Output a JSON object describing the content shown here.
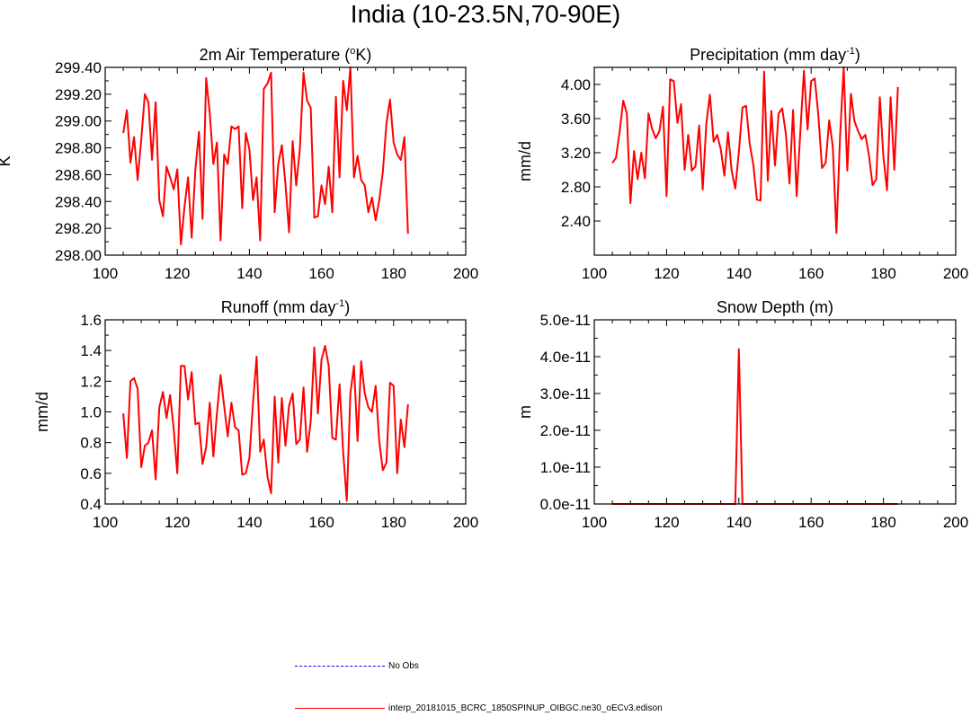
{
  "figure_title": "India (10-23.5N,70-90E)",
  "legend": [
    {
      "label": "No Obs",
      "color": "#0000ff",
      "style": "dashed"
    },
    {
      "label": "interp_20181015_BCRC_1850SPINUP_OIBGC.ne30_oECv3.edison",
      "color": "#ff0000",
      "style": "solid"
    }
  ],
  "chart_data": [
    {
      "type": "line",
      "title": "2m Air Temperature (°K)",
      "ylabel": "K",
      "xlabel": "",
      "xlim": [
        100,
        200
      ],
      "xticks": [
        "100",
        "120",
        "140",
        "160",
        "180",
        "200"
      ],
      "ylim": [
        298.0,
        299.4
      ],
      "yticks": [
        "298.00",
        "298.20",
        "298.40",
        "298.60",
        "298.80",
        "299.00",
        "299.20",
        "299.40"
      ],
      "series": [
        {
          "color": "#ff0000",
          "x": [
            105,
            106,
            107,
            108,
            109,
            110,
            111,
            112,
            113,
            114,
            115,
            116,
            117,
            118,
            119,
            120,
            121,
            122,
            123,
            124,
            125,
            126,
            127,
            128,
            129,
            130,
            131,
            132,
            133,
            134,
            135,
            136,
            137,
            138,
            139,
            140,
            141,
            142,
            143,
            144,
            145,
            146,
            147,
            148,
            149,
            150,
            151,
            152,
            153,
            154,
            155,
            156,
            157,
            158,
            159,
            160,
            161,
            162,
            163,
            164,
            165,
            166,
            167,
            168,
            169,
            170,
            171,
            172,
            173,
            174,
            175,
            176,
            177,
            178,
            179,
            180,
            181,
            182,
            183,
            184
          ],
          "values": [
            298.91,
            299.08,
            298.69,
            298.88,
            298.56,
            298.86,
            299.2,
            299.14,
            298.71,
            299.14,
            298.41,
            298.29,
            298.66,
            298.58,
            298.49,
            298.64,
            298.08,
            298.36,
            298.58,
            298.13,
            298.64,
            298.92,
            298.27,
            299.32,
            299.06,
            298.68,
            298.84,
            298.11,
            298.75,
            298.68,
            298.96,
            298.94,
            298.96,
            298.35,
            298.91,
            298.79,
            298.41,
            298.58,
            298.11,
            299.24,
            299.28,
            299.36,
            298.32,
            298.68,
            298.82,
            298.53,
            298.17,
            298.85,
            298.52,
            298.79,
            299.36,
            299.15,
            299.1,
            298.28,
            298.29,
            298.52,
            298.38,
            298.66,
            298.32,
            299.18,
            298.58,
            299.3,
            299.08,
            299.4,
            298.58,
            298.74,
            298.56,
            298.52,
            298.32,
            298.43,
            298.26,
            298.41,
            298.62,
            298.98,
            299.16,
            298.84,
            298.75,
            298.71,
            298.88,
            298.16
          ]
        }
      ]
    },
    {
      "type": "line",
      "title": "Precipitation (mm day-1)",
      "ylabel": "mm/d",
      "xlabel": "",
      "xlim": [
        100,
        200
      ],
      "xticks": [
        "100",
        "120",
        "140",
        "160",
        "180",
        "200"
      ],
      "ylim": [
        2.0,
        4.2
      ],
      "yticks": [
        "2.40",
        "2.80",
        "3.20",
        "3.60",
        "4.00"
      ],
      "series": [
        {
          "color": "#ff0000",
          "x": [
            105,
            106,
            107,
            108,
            109,
            110,
            111,
            112,
            113,
            114,
            115,
            116,
            117,
            118,
            119,
            120,
            121,
            122,
            123,
            124,
            125,
            126,
            127,
            128,
            129,
            130,
            131,
            132,
            133,
            134,
            135,
            136,
            137,
            138,
            139,
            140,
            141,
            142,
            143,
            144,
            145,
            146,
            147,
            148,
            149,
            150,
            151,
            152,
            153,
            154,
            155,
            156,
            157,
            158,
            159,
            160,
            161,
            162,
            163,
            164,
            165,
            166,
            167,
            168,
            169,
            170,
            171,
            172,
            173,
            174,
            175,
            176,
            177,
            178,
            179,
            180,
            181,
            182,
            183,
            184
          ],
          "values": [
            3.08,
            3.14,
            3.44,
            3.81,
            3.66,
            2.61,
            3.22,
            2.89,
            3.2,
            2.9,
            3.66,
            3.48,
            3.37,
            3.45,
            3.74,
            2.69,
            4.06,
            4.04,
            3.55,
            3.77,
            3.0,
            3.41,
            2.99,
            3.04,
            3.52,
            2.77,
            3.54,
            3.88,
            3.33,
            3.41,
            3.24,
            2.93,
            3.44,
            2.99,
            2.78,
            3.21,
            3.73,
            3.75,
            3.3,
            3.06,
            2.65,
            2.64,
            4.15,
            2.87,
            3.69,
            3.05,
            3.66,
            3.72,
            3.42,
            2.84,
            3.7,
            2.69,
            3.43,
            4.16,
            3.47,
            4.04,
            4.07,
            3.64,
            3.02,
            3.08,
            3.58,
            3.27,
            2.26,
            3.4,
            4.2,
            2.99,
            3.89,
            3.57,
            3.45,
            3.36,
            3.41,
            3.17,
            2.82,
            2.89,
            3.85,
            3.15,
            2.76,
            3.85,
            3.0,
            3.97
          ]
        }
      ]
    },
    {
      "type": "line",
      "title": "Runoff (mm day-1)",
      "ylabel": "mm/d",
      "xlabel": "",
      "xlim": [
        100,
        200
      ],
      "xticks": [
        "100",
        "120",
        "140",
        "160",
        "180",
        "200"
      ],
      "ylim": [
        0.4,
        1.6
      ],
      "yticks": [
        "0.4",
        "0.6",
        "0.8",
        "1.0",
        "1.2",
        "1.4",
        "1.6"
      ],
      "series": [
        {
          "color": "#ff0000",
          "x": [
            105,
            106,
            107,
            108,
            109,
            110,
            111,
            112,
            113,
            114,
            115,
            116,
            117,
            118,
            119,
            120,
            121,
            122,
            123,
            124,
            125,
            126,
            127,
            128,
            129,
            130,
            131,
            132,
            133,
            134,
            135,
            136,
            137,
            138,
            139,
            140,
            141,
            142,
            143,
            144,
            145,
            146,
            147,
            148,
            149,
            150,
            151,
            152,
            153,
            154,
            155,
            156,
            157,
            158,
            159,
            160,
            161,
            162,
            163,
            164,
            165,
            166,
            167,
            168,
            169,
            170,
            171,
            172,
            173,
            174,
            175,
            176,
            177,
            178,
            179,
            180,
            181,
            182,
            183,
            184
          ],
          "values": [
            0.99,
            0.7,
            1.2,
            1.22,
            1.15,
            0.64,
            0.78,
            0.8,
            0.88,
            0.56,
            1.03,
            1.13,
            0.96,
            1.11,
            0.89,
            0.6,
            1.3,
            1.3,
            1.08,
            1.26,
            0.92,
            0.93,
            0.66,
            0.77,
            1.06,
            0.71,
            0.99,
            1.24,
            1.04,
            0.84,
            1.06,
            0.9,
            0.88,
            0.59,
            0.6,
            0.7,
            1.06,
            1.36,
            0.74,
            0.82,
            0.58,
            0.47,
            1.1,
            0.67,
            1.09,
            0.78,
            1.04,
            1.12,
            0.79,
            0.82,
            1.16,
            0.74,
            0.94,
            1.42,
            0.99,
            1.34,
            1.43,
            1.3,
            0.83,
            0.82,
            1.18,
            0.74,
            0.42,
            1.12,
            1.3,
            0.81,
            1.33,
            1.12,
            1.03,
            1.0,
            1.17,
            0.81,
            0.62,
            0.67,
            1.19,
            1.17,
            0.6,
            0.95,
            0.77,
            1.05
          ]
        }
      ]
    },
    {
      "type": "line",
      "title": "Snow Depth (m)",
      "ylabel": "m",
      "xlabel": "",
      "xlim": [
        100,
        200
      ],
      "xticks": [
        "100",
        "120",
        "140",
        "160",
        "180",
        "200"
      ],
      "ylim": [
        0,
        5e-11
      ],
      "yticks": [
        "0.0e-11",
        "1.0e-11",
        "2.0e-11",
        "3.0e-11",
        "4.0e-11",
        "5.0e-11"
      ],
      "series": [
        {
          "color": "#ff0000",
          "x": [
            105,
            138,
            139,
            140,
            141,
            142,
            184
          ],
          "values": [
            0,
            0,
            0,
            4.2e-11,
            0,
            0,
            0
          ]
        }
      ]
    }
  ]
}
